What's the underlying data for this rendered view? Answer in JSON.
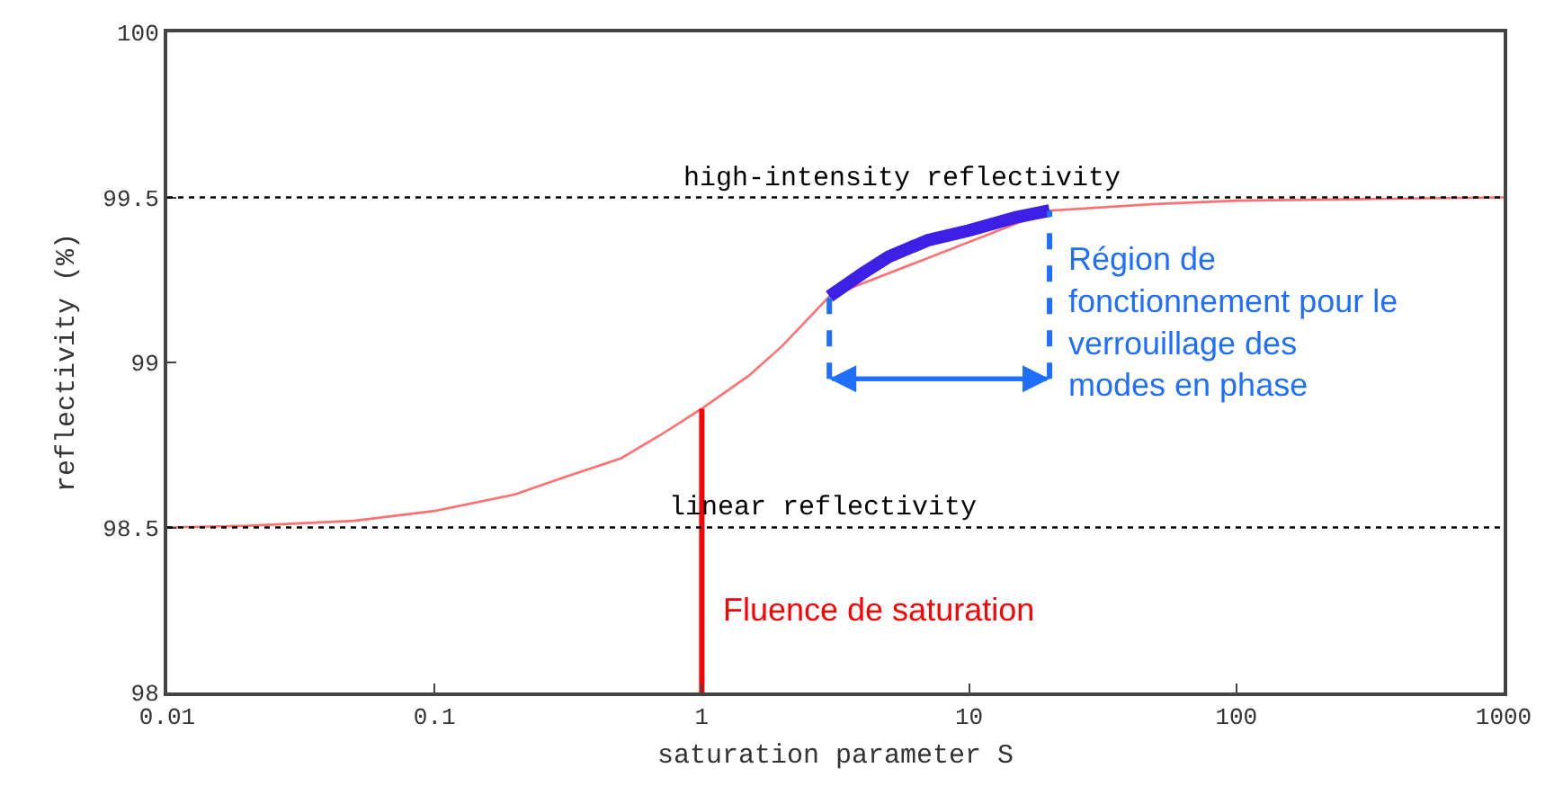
{
  "chart_data": {
    "type": "line",
    "xlabel": "saturation parameter S",
    "ylabel": "reflectivity (%)",
    "log": "x",
    "xlim": [
      0.01,
      1000
    ],
    "xticks": [
      0.01,
      0.1,
      1,
      10,
      100,
      1000
    ],
    "ylim": [
      98,
      100
    ],
    "yticks": [
      98,
      98.5,
      99,
      99.5,
      100
    ],
    "series": [
      {
        "color": "#ff7070",
        "x": [
          0.01,
          0.02,
          0.05,
          0.1,
          0.2,
          0.3,
          0.5,
          0.7,
          1,
          1.5,
          2,
          3,
          20,
          50,
          100,
          300,
          1000
        ],
        "values": [
          98.5,
          98.505,
          98.52,
          98.55,
          98.6,
          98.65,
          98.71,
          98.78,
          98.86,
          98.96,
          99.05,
          99.2,
          99.46,
          99.48,
          99.49,
          99.495,
          99.5
        ]
      },
      {
        "color": "#3d1fe6",
        "x": [
          3,
          4,
          5,
          7,
          10,
          15,
          20
        ],
        "values": [
          99.2,
          99.27,
          99.32,
          99.37,
          99.4,
          99.44,
          99.46
        ]
      },
      {
        "color": "#ff0000",
        "x": [
          1,
          1
        ],
        "values": [
          98,
          98.86
        ]
      },
      {
        "color": "#1f6fff",
        "line_style": "dashed",
        "x": [
          3,
          3
        ],
        "values": [
          98.95,
          99.2
        ]
      },
      {
        "color": "#1f6fff",
        "line_style": "dashed",
        "x": [
          20,
          20
        ],
        "values": [
          98.95,
          99.46
        ]
      }
    ],
    "ref_lines": [
      {
        "axis": "y",
        "value": 99.5,
        "label": "high-intensity reflectivity",
        "color": "#000000",
        "line_style": "dotted"
      },
      {
        "axis": "y",
        "value": 98.5,
        "label": "linear reflectivity",
        "color": "#000000",
        "line_style": "dotted"
      }
    ],
    "annotations": [
      {
        "text": "Fluence de saturation",
        "x": 1,
        "y": 98.25
      },
      {
        "text": "Région de\nfonctionnement pour le\nverrouillage des\nmodes en phase",
        "x": 20,
        "y": 99.12
      }
    ]
  }
}
